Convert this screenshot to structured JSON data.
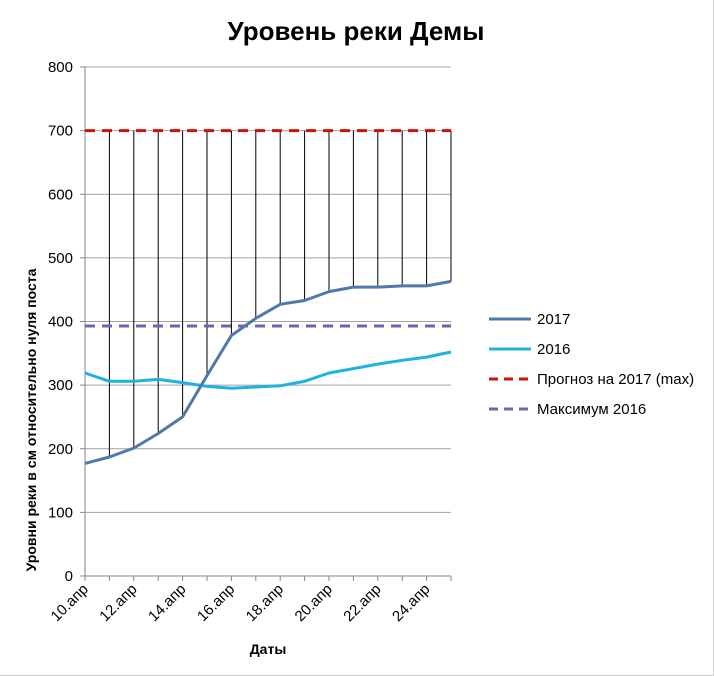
{
  "chart_data": {
    "type": "line",
    "title": "Уровень реки Демы",
    "xlabel": "Даты",
    "ylabel": "Уровни реки в см относительно нуля поста",
    "ylim": [
      0,
      800
    ],
    "yticks": [
      0,
      100,
      200,
      300,
      400,
      500,
      600,
      700,
      800
    ],
    "categories": [
      "10.апр",
      "11.апр",
      "12.апр",
      "13.апр",
      "14.апр",
      "15.апр",
      "16.апр",
      "17.апр",
      "18.апр",
      "19.апр",
      "20.апр",
      "21.апр",
      "22.апр",
      "23.апр",
      "24.апр",
      "25.апр"
    ],
    "xtick_labels": [
      "10.апр",
      "12.апр",
      "14.апр",
      "16.апр",
      "18.апр",
      "20.апр",
      "22.апр",
      "24.апр"
    ],
    "grid": {
      "horizontal": true,
      "vertical_drop_lines": true
    },
    "legend_position": "right",
    "series": [
      {
        "name": "2017",
        "color": "#4f7aa8",
        "style": "solid",
        "values": [
          177,
          187,
          201,
          224,
          250,
          315,
          378,
          405,
          427,
          433,
          447,
          454,
          454,
          456,
          456,
          463
        ]
      },
      {
        "name": "2016",
        "color": "#1fb2e0",
        "style": "solid",
        "values": [
          319,
          306,
          306,
          309,
          304,
          298,
          295,
          297,
          299,
          306,
          319,
          326,
          333,
          339,
          344,
          352
        ]
      },
      {
        "name": "Прогноз на 2017 (max)",
        "color": "#cc1111",
        "style": "dashed",
        "values": [
          700,
          700,
          700,
          700,
          700,
          700,
          700,
          700,
          700,
          700,
          700,
          700,
          700,
          700,
          700,
          700
        ]
      },
      {
        "name": "Максимум 2016",
        "color": "#7b5ea7",
        "style": "dashed",
        "values": [
          393,
          393,
          393,
          393,
          393,
          393,
          393,
          393,
          393,
          393,
          393,
          393,
          393,
          393,
          393,
          393
        ]
      }
    ]
  }
}
